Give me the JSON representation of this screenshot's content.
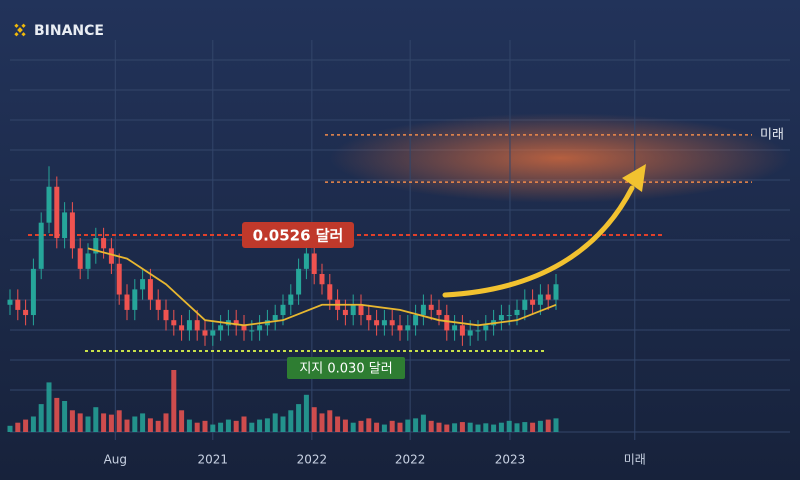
{
  "chart_data": {
    "type": "candlestick",
    "brand": "BINANCE",
    "x": [
      0,
      1,
      2,
      3,
      4,
      5,
      6,
      7,
      8,
      9,
      10,
      11,
      12,
      13,
      14,
      15,
      16,
      17,
      18,
      19,
      20,
      21,
      22,
      23,
      24,
      25,
      26,
      27,
      28,
      29,
      30,
      31,
      32,
      33,
      34,
      35,
      36,
      37,
      38,
      39,
      40,
      41,
      42,
      43,
      44,
      45,
      46,
      47,
      48,
      49,
      50,
      51,
      52,
      53,
      54,
      55,
      56,
      57,
      58,
      59,
      60,
      61,
      62,
      63,
      64,
      65,
      66,
      67,
      68,
      69,
      70
    ],
    "open": [
      0.039,
      0.04,
      0.038,
      0.037,
      0.046,
      0.055,
      0.062,
      0.052,
      0.057,
      0.05,
      0.046,
      0.049,
      0.052,
      0.05,
      0.047,
      0.041,
      0.038,
      0.042,
      0.044,
      0.04,
      0.038,
      0.036,
      0.035,
      0.034,
      0.036,
      0.034,
      0.033,
      0.034,
      0.035,
      0.036,
      0.035,
      0.034,
      0.034,
      0.035,
      0.036,
      0.037,
      0.039,
      0.041,
      0.046,
      0.049,
      0.045,
      0.043,
      0.04,
      0.038,
      0.037,
      0.039,
      0.037,
      0.036,
      0.035,
      0.036,
      0.035,
      0.034,
      0.035,
      0.037,
      0.039,
      0.038,
      0.037,
      0.034,
      0.035,
      0.033,
      0.034,
      0.034,
      0.035,
      0.036,
      0.037,
      0.037,
      0.038,
      0.04,
      0.039,
      0.041,
      0.04
    ],
    "high": [
      0.042,
      0.042,
      0.04,
      0.048,
      0.057,
      0.066,
      0.064,
      0.059,
      0.059,
      0.052,
      0.051,
      0.054,
      0.054,
      0.052,
      0.049,
      0.043,
      0.044,
      0.046,
      0.046,
      0.042,
      0.04,
      0.038,
      0.037,
      0.038,
      0.038,
      0.036,
      0.036,
      0.037,
      0.038,
      0.038,
      0.037,
      0.036,
      0.037,
      0.038,
      0.039,
      0.041,
      0.043,
      0.048,
      0.051,
      0.051,
      0.047,
      0.045,
      0.042,
      0.04,
      0.041,
      0.041,
      0.039,
      0.038,
      0.038,
      0.038,
      0.037,
      0.037,
      0.039,
      0.041,
      0.041,
      0.04,
      0.039,
      0.037,
      0.037,
      0.036,
      0.036,
      0.037,
      0.038,
      0.039,
      0.039,
      0.04,
      0.042,
      0.042,
      0.043,
      0.043,
      0.045
    ],
    "low": [
      0.037,
      0.036,
      0.035,
      0.035,
      0.044,
      0.053,
      0.05,
      0.05,
      0.048,
      0.044,
      0.044,
      0.047,
      0.048,
      0.045,
      0.039,
      0.036,
      0.036,
      0.04,
      0.038,
      0.036,
      0.034,
      0.033,
      0.032,
      0.032,
      0.032,
      0.031,
      0.031,
      0.032,
      0.033,
      0.033,
      0.032,
      0.032,
      0.032,
      0.033,
      0.034,
      0.035,
      0.037,
      0.039,
      0.044,
      0.043,
      0.041,
      0.038,
      0.036,
      0.035,
      0.035,
      0.035,
      0.034,
      0.033,
      0.033,
      0.033,
      0.032,
      0.032,
      0.033,
      0.035,
      0.036,
      0.035,
      0.032,
      0.032,
      0.031,
      0.031,
      0.032,
      0.032,
      0.033,
      0.034,
      0.035,
      0.035,
      0.036,
      0.037,
      0.037,
      0.038,
      0.038
    ],
    "close": [
      0.04,
      0.038,
      0.037,
      0.046,
      0.055,
      0.062,
      0.052,
      0.057,
      0.05,
      0.046,
      0.049,
      0.052,
      0.05,
      0.047,
      0.041,
      0.038,
      0.042,
      0.044,
      0.04,
      0.038,
      0.036,
      0.035,
      0.034,
      0.036,
      0.034,
      0.033,
      0.034,
      0.035,
      0.036,
      0.035,
      0.034,
      0.034,
      0.035,
      0.036,
      0.037,
      0.039,
      0.041,
      0.046,
      0.049,
      0.045,
      0.043,
      0.04,
      0.038,
      0.037,
      0.039,
      0.037,
      0.036,
      0.035,
      0.036,
      0.035,
      0.034,
      0.035,
      0.037,
      0.039,
      0.038,
      0.037,
      0.034,
      0.035,
      0.033,
      0.034,
      0.034,
      0.035,
      0.036,
      0.037,
      0.037,
      0.038,
      0.04,
      0.039,
      0.041,
      0.04,
      0.043
    ],
    "volume": [
      10,
      15,
      20,
      25,
      45,
      80,
      55,
      50,
      35,
      30,
      25,
      40,
      30,
      28,
      35,
      20,
      25,
      30,
      22,
      18,
      30,
      100,
      35,
      20,
      15,
      18,
      12,
      15,
      20,
      18,
      25,
      15,
      20,
      22,
      30,
      25,
      35,
      45,
      60,
      40,
      30,
      35,
      25,
      20,
      15,
      18,
      22,
      15,
      12,
      18,
      15,
      20,
      22,
      28,
      18,
      15,
      12,
      14,
      16,
      15,
      12,
      14,
      12,
      15,
      18,
      14,
      16,
      15,
      18,
      20,
      22
    ],
    "up_color": "#26a69a",
    "down_color": "#ef5350",
    "ma": {
      "color": "#e8b730",
      "x": [
        10,
        15,
        20,
        25,
        30,
        35,
        40,
        45,
        50,
        55,
        60,
        65,
        70
      ],
      "values": [
        0.05,
        0.048,
        0.043,
        0.036,
        0.035,
        0.036,
        0.039,
        0.039,
        0.038,
        0.036,
        0.035,
        0.036,
        0.039
      ]
    },
    "resistance": {
      "value": 0.0526,
      "label": "0.0526 달러",
      "color": "#e0402a"
    },
    "support": {
      "value": 0.03,
      "label": "지지 0.030 달러",
      "color": "#c8e04a"
    },
    "target_zone": {
      "label": "미래",
      "values": [
        0.0721,
        0.0629
      ],
      "color": "#f08a4b"
    },
    "xlim": [
      0,
      100
    ],
    "ylim": [
      0.0146,
      0.0867
    ],
    "y2lim": [
      0,
      100
    ],
    "xticks": [
      {
        "value": 13.5,
        "label": "Aug"
      },
      {
        "value": 26,
        "label": "2021"
      },
      {
        "value": 38.7,
        "label": "2022"
      },
      {
        "value": 51.3,
        "label": "2022"
      },
      {
        "value": 64.1,
        "label": "2023"
      },
      {
        "value": 80.1,
        "label": "미래"
      }
    ],
    "grid": true
  }
}
